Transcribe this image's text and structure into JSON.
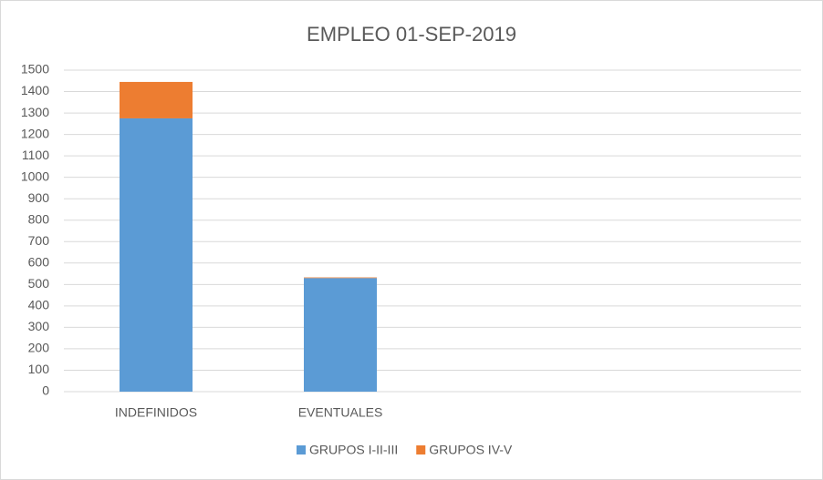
{
  "chart_data": {
    "type": "stacked-bar",
    "title": "EMPLEO 01-SEP-2019",
    "categories": [
      "INDEFINIDOS",
      "EVENTUALES",
      null,
      null
    ],
    "series": [
      {
        "name": "GRUPOS I-II-III",
        "color": "#5b9bd5",
        "values": [
          1275,
          530,
          null,
          null
        ]
      },
      {
        "name": "GRUPOS IV-V",
        "color": "#ed7d31",
        "values": [
          170,
          3,
          null,
          null
        ]
      }
    ],
    "ylim": [
      0,
      1500
    ],
    "yticks": [
      0,
      100,
      200,
      300,
      400,
      500,
      600,
      700,
      800,
      900,
      1000,
      1100,
      1200,
      1300,
      1400,
      1500
    ],
    "grid": true,
    "legend": "bottom"
  }
}
